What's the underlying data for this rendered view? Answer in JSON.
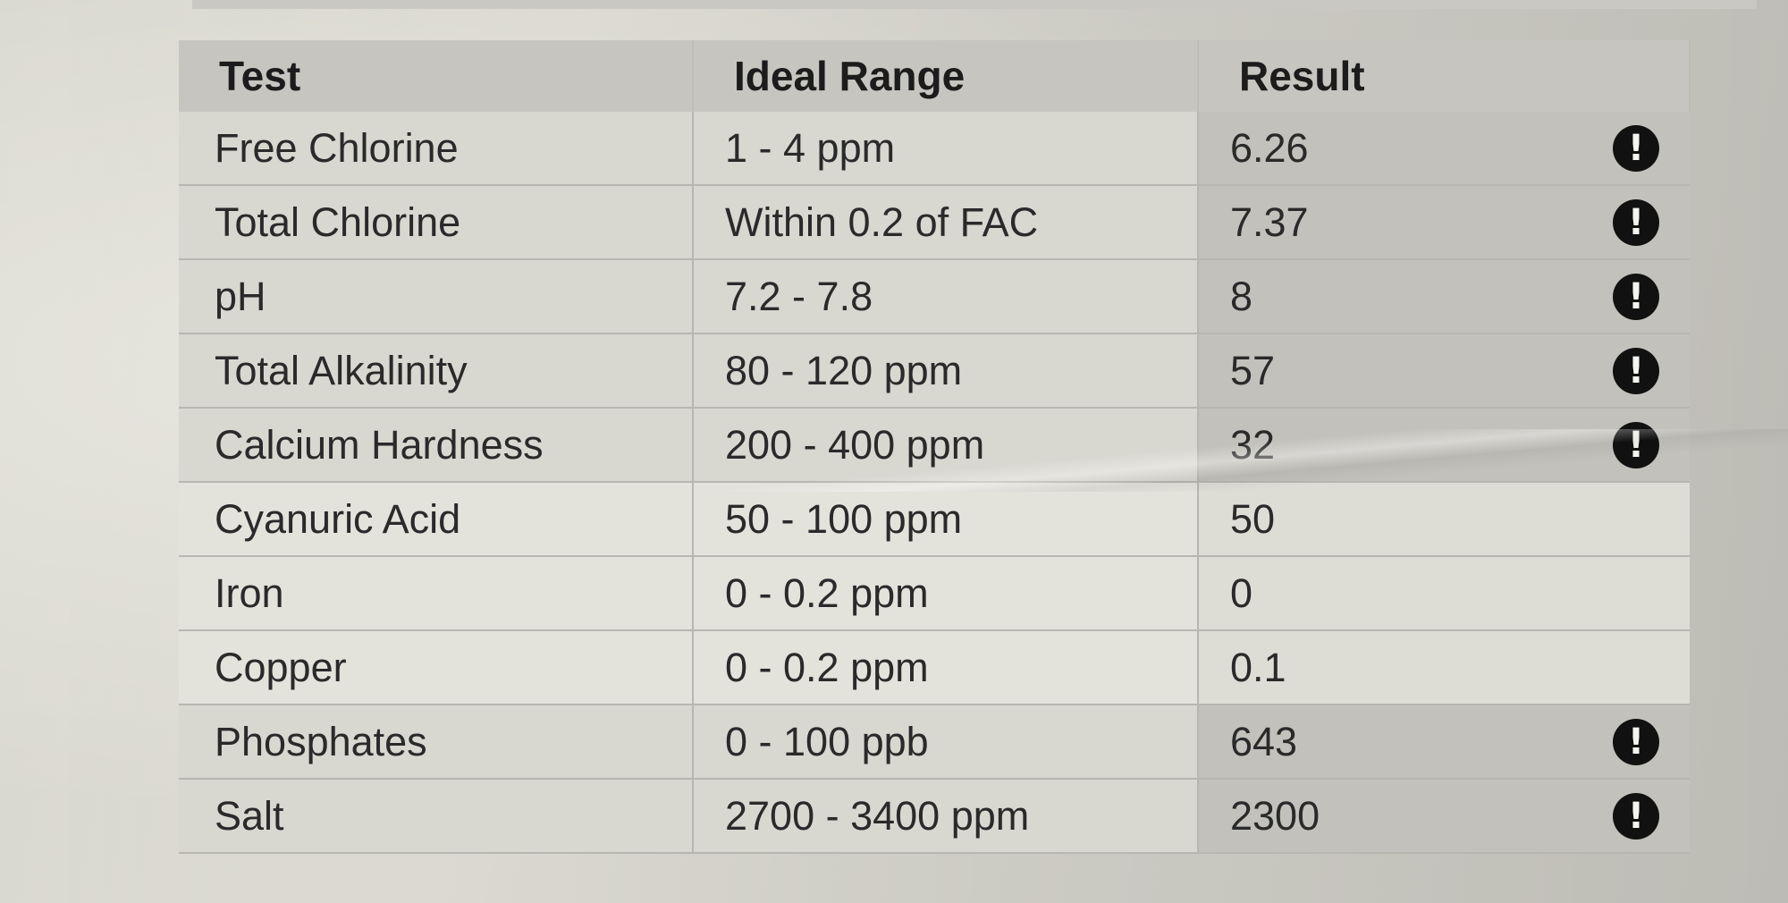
{
  "table": {
    "headers": {
      "test": "Test",
      "range": "Ideal Range",
      "result": "Result"
    },
    "rows": [
      {
        "test": "Free Chlorine",
        "range": "1 - 4 ppm",
        "result": "6.26",
        "alert": "!",
        "flagged": true
      },
      {
        "test": "Total Chlorine",
        "range": "Within 0.2 of FAC",
        "result": "7.37",
        "alert": "!",
        "flagged": true
      },
      {
        "test": "pH",
        "range": "7.2 - 7.8",
        "result": "8",
        "alert": "!",
        "flagged": true
      },
      {
        "test": "Total Alkalinity",
        "range": "80 - 120 ppm",
        "result": "57",
        "alert": "!",
        "flagged": true
      },
      {
        "test": "Calcium Hardness",
        "range": "200 - 400 ppm",
        "result": "32",
        "alert": "!",
        "flagged": true
      },
      {
        "test": "Cyanuric Acid",
        "range": "50 - 100 ppm",
        "result": "50",
        "alert": "",
        "flagged": false
      },
      {
        "test": "Iron",
        "range": "0 - 0.2 ppm",
        "result": "0",
        "alert": "",
        "flagged": false
      },
      {
        "test": "Copper",
        "range": "0 - 0.2 ppm",
        "result": "0.1",
        "alert": "",
        "flagged": false
      },
      {
        "test": "Phosphates",
        "range": "0 - 100 ppb",
        "result": "643",
        "alert": "!",
        "flagged": true
      },
      {
        "test": "Salt",
        "range": "2700 - 3400 ppm",
        "result": "2300",
        "alert": "!",
        "flagged": true
      }
    ]
  },
  "icons": {
    "alert": "exclamation-circle-icon"
  },
  "colors": {
    "alert_icon": "#111111",
    "flagged_result_bg": "#c2c1bb"
  }
}
